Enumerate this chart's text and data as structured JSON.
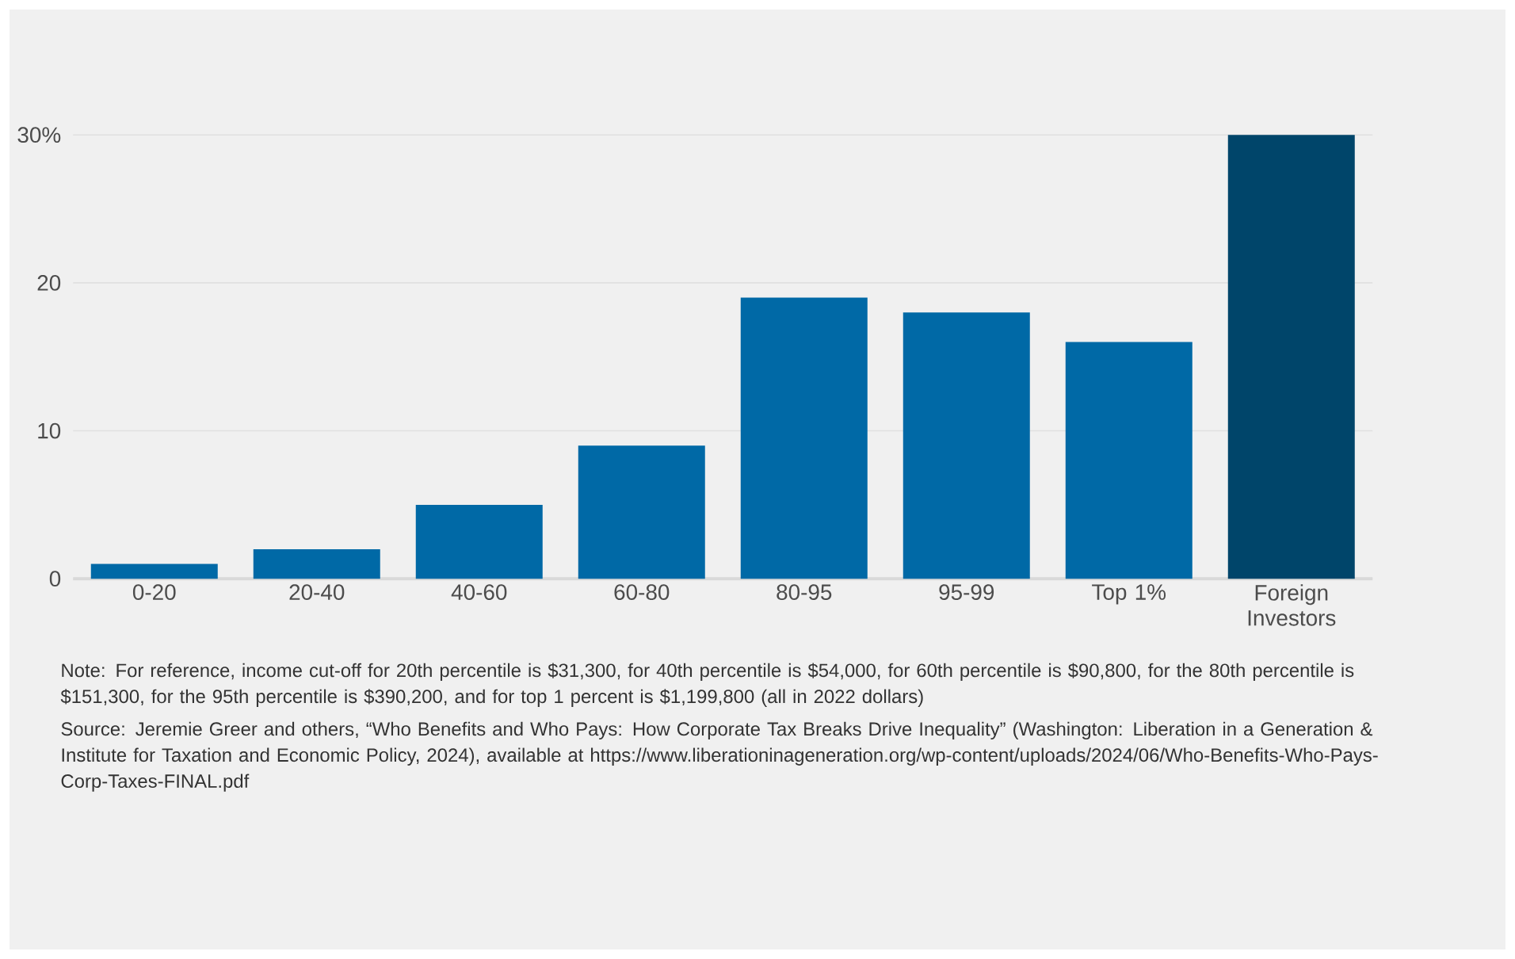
{
  "chart_data": {
    "type": "bar",
    "categories": [
      "0-20",
      "20-40",
      "40-60",
      "60-80",
      "80-95",
      "95-99",
      "Top 1%",
      "Foreign Investors"
    ],
    "values": [
      1,
      2,
      5,
      9,
      19,
      18,
      16,
      30
    ],
    "colors": [
      "#0069a6",
      "#0069a6",
      "#0069a6",
      "#0069a6",
      "#0069a6",
      "#0069a6",
      "#0069a6",
      "#00456a"
    ],
    "ylim": [
      0,
      30
    ],
    "yticks": [
      0,
      10,
      20,
      {
        "value": 30,
        "label": "30%"
      }
    ],
    "grid": "y",
    "annotations": [
      "Note: For reference, income cut-off for 20th percentile is $31,300, for 40th percentile is $54,000, for 60th percentile is $90,800, for the 80th percentile is $151,300, for the 95th percentile is $390,200, and for top 1 percent is $1,199,800 (all in 2022 dollars)",
      "Source: Jeremie Greer and others, “Who Benefits and Who Pays: How Corporate Tax Breaks Drive Inequality” (Washington: Liberation in a Generation & Institute for Taxation and Economic Policy, 2024), available at https://www.liberationinageneration.org/wp-content/uploads/2024/06/Who-Benefits-Who-Pays-Corp-Taxes-FINAL.pdf"
    ]
  }
}
